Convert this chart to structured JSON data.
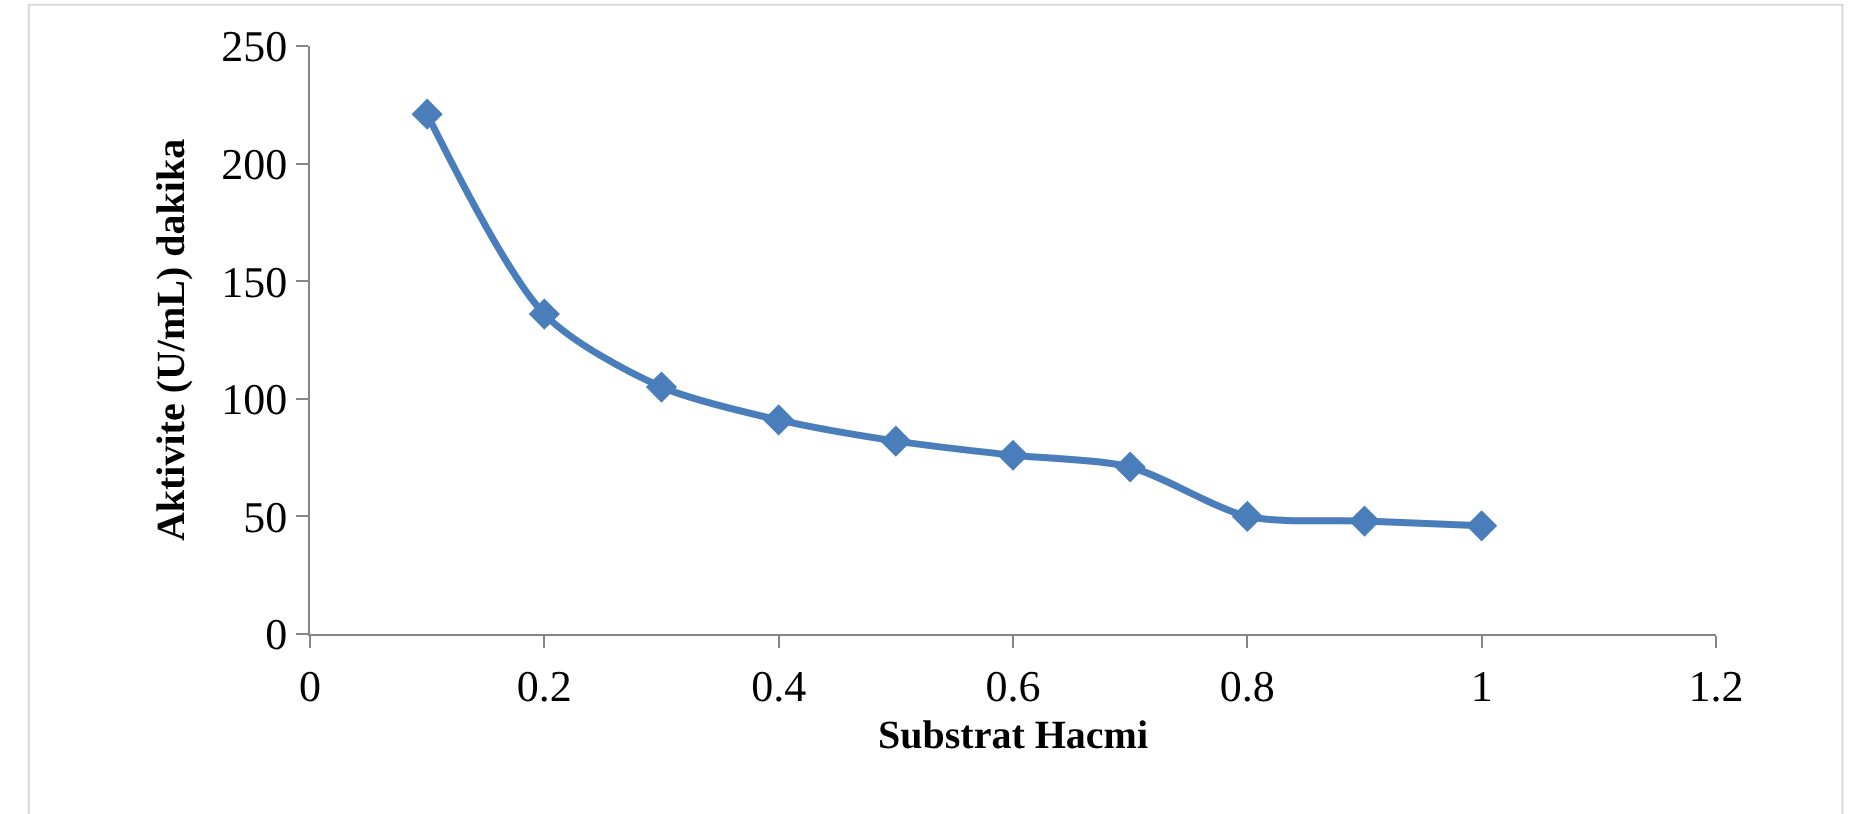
{
  "chart_data": {
    "type": "line",
    "xlabel": "Substrat Hacmi",
    "ylabel": "Aktivite (U/mL) dakika",
    "x": [
      0.1,
      0.2,
      0.3,
      0.4,
      0.5,
      0.6,
      0.7,
      0.8,
      0.9,
      1
    ],
    "series": [
      {
        "color": "#4a7ebb",
        "values": [
          221,
          136,
          105,
          91,
          82,
          76,
          71,
          50,
          48,
          46
        ]
      }
    ],
    "xlim": [
      0,
      1.2
    ],
    "xticks": [
      0,
      0.2,
      0.4,
      0.6,
      0.8,
      1,
      1.2
    ],
    "ylim": [
      0,
      250
    ],
    "yticks": [
      0,
      50,
      100,
      150,
      200,
      250
    ],
    "grid": false,
    "marker": "diamond",
    "line_style": "solid"
  }
}
